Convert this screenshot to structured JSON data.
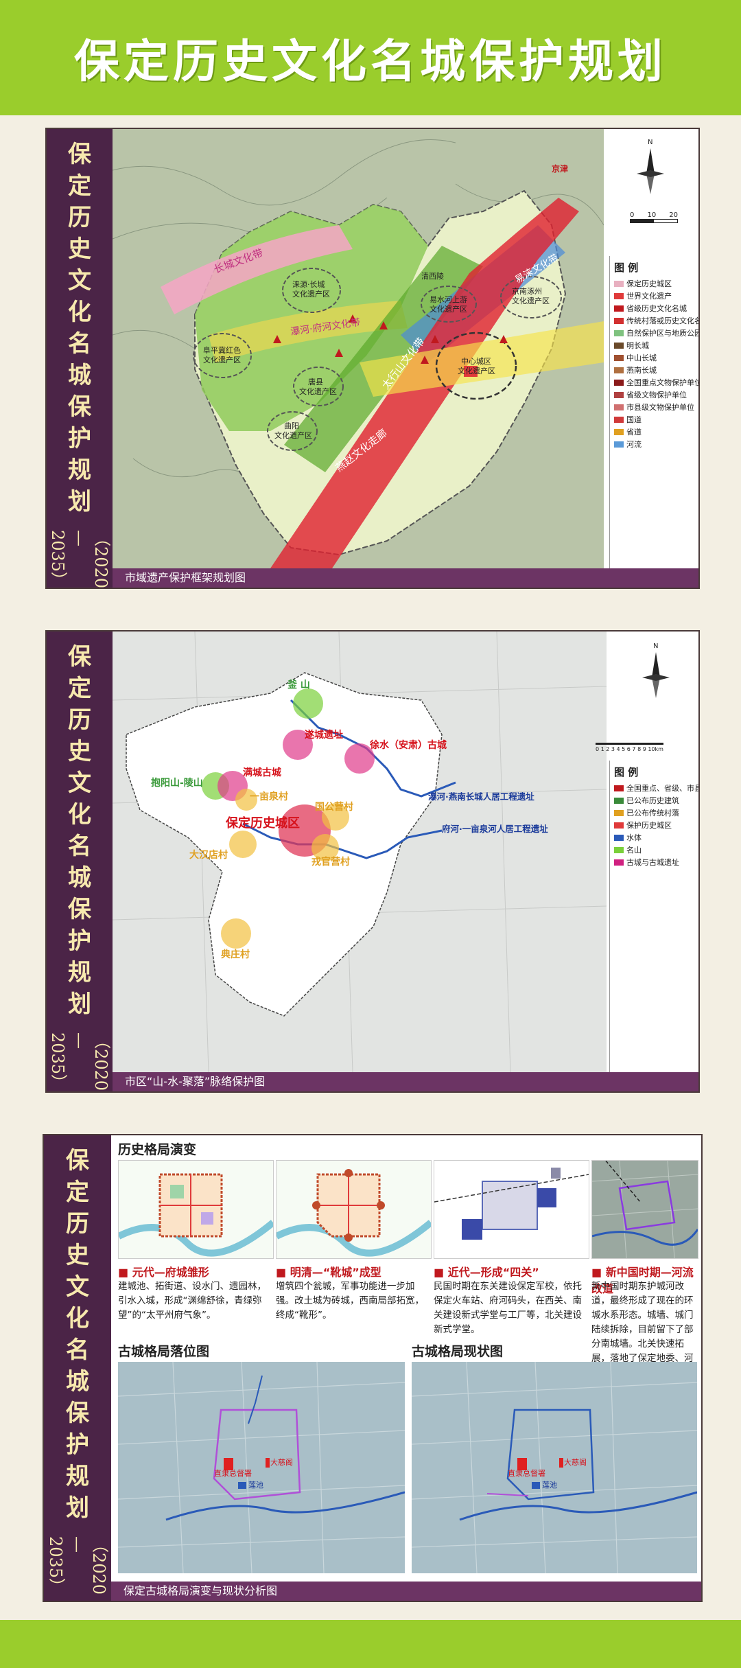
{
  "header": {
    "title": "保定历史文化名城保护规划"
  },
  "side_title": {
    "chars": [
      "保",
      "定",
      "历",
      "史",
      "文",
      "化",
      "名",
      "城",
      "保",
      "护",
      "规",
      "划"
    ],
    "years": "（2020 —2035）"
  },
  "panel1": {
    "caption": "市域遗产保护框架规划图",
    "scale": {
      "zero": "0",
      "mid": "10",
      "end": "20"
    },
    "north": "N",
    "map_labels": {
      "jingjin": "京津",
      "jingnan": "京南涿州\n文化遗产区",
      "yishui": "易水河上游\n文化遗产区",
      "qingxi": "清西陵",
      "laiyuan": "涞源·长城\n文化遗产区",
      "fuping": "阜平冀红色\n文化遗产区",
      "tang": "唐县\n文化遗产区",
      "quyang": "曲阳\n文化遗产区",
      "center": "中心城区\n文化遗产区",
      "band_changcheng": "长城文化带",
      "band_juhe": "瀑河·府河文化带",
      "band_taihang": "太行山文化带",
      "band_yishui": "易涞文化带",
      "band_yanzhao": "燕赵文化走廊"
    },
    "legend": {
      "title": "图 例",
      "items": [
        {
          "label": "保定历史城区",
          "color": "#e8b0c0"
        },
        {
          "label": "世界文化遗产",
          "color": "#e03a3a"
        },
        {
          "label": "省级历史文化名城",
          "color": "#c0191e"
        },
        {
          "label": "传统村落或历史文化名村",
          "color": "#d23030"
        },
        {
          "label": "自然保护区与地质公园",
          "color": "#7fc27f"
        },
        {
          "label": "明长城",
          "color": "#6a4a2a"
        },
        {
          "label": "中山长城",
          "color": "#a05030"
        },
        {
          "label": "燕南长城",
          "color": "#b07040"
        },
        {
          "label": "全国重点文物保护单位",
          "color": "#8a1a1a"
        },
        {
          "label": "省级文物保护单位",
          "color": "#b04040"
        },
        {
          "label": "市县级文物保护单位",
          "color": "#d07070"
        },
        {
          "label": "国道",
          "color": "#d03a3a"
        },
        {
          "label": "省道",
          "color": "#e0a020"
        },
        {
          "label": "河流",
          "color": "#5a9ad8"
        }
      ]
    }
  },
  "panel2": {
    "caption": "市区“山-水-聚落”脉络保护图",
    "scale": "0 1 2 3 4 5 6 7 8 9 10km",
    "north": "N",
    "map_labels": {
      "fushan": "釜 山",
      "suicheng": "遂城遗址",
      "xushui": "徐水（安肃）古城",
      "baoyang": "抱阳山-陵山",
      "mancheng": "满城古城",
      "yimuquan": "一亩泉村",
      "historic": "保定历史城区",
      "guogong": "国公营村",
      "dahan": "大汉店村",
      "rongguan": "戎官营村",
      "dianzhuang": "典庄村",
      "puhe": "瀑河·燕南长城人居工程遗址",
      "fuhe": "府河·一亩泉河人居工程遗址"
    },
    "legend": {
      "title": "图 例",
      "items": [
        {
          "label": "全国重点、省级、市县级文物保护单位",
          "color": "#c0191e"
        },
        {
          "label": "已公布历史建筑",
          "color": "#3a8a3a"
        },
        {
          "label": "已公布传统村落",
          "color": "#e0a020"
        },
        {
          "label": "保护历史城区",
          "color": "#e03a3a"
        },
        {
          "label": "水体",
          "color": "#2a5ab8"
        },
        {
          "label": "名山",
          "color": "#7ad03a"
        },
        {
          "label": "古城与古城遗址",
          "color": "#d02080"
        }
      ]
    }
  },
  "panel3": {
    "caption": "保定古城格局演变与现状分析图",
    "evolution_title": "历史格局演变",
    "stages": [
      {
        "head": "■ 元代—府城雏形",
        "body": "建城池、拓街道、设水门、遗园林，引水入城，形成“渊绵舒徐，青绿弥望”的“太平州府气象”。"
      },
      {
        "head": "■ 明清—“靴城”成型",
        "body": "增筑四个瓮城，军事功能进一步加强。改土城为砖城，西南局部拓宽，终成“靴形”。"
      },
      {
        "head": "■ 近代—形成“四关”",
        "body": "民国时期在东关建设保定军校，依托保定火车站、府河码头，在西关、南关建设新式学堂与工厂等，北关建设新式学堂。"
      },
      {
        "head": "■ 新中国时期—河流改道",
        "body": "新中国时期东护城河改道，最终形成了现在的环城水系形态。城墙、城门陆续拆除，目前留下了部分南城墙。北关快速拓展，落地了保定地委、河北大学等。"
      }
    ],
    "map1_title": "古城格局落位图",
    "map2_title": "古城格局现状图",
    "map_labels": {
      "zhili": "直隶总督署",
      "dacisi": "大慈阁",
      "lianchi": "莲池"
    }
  }
}
